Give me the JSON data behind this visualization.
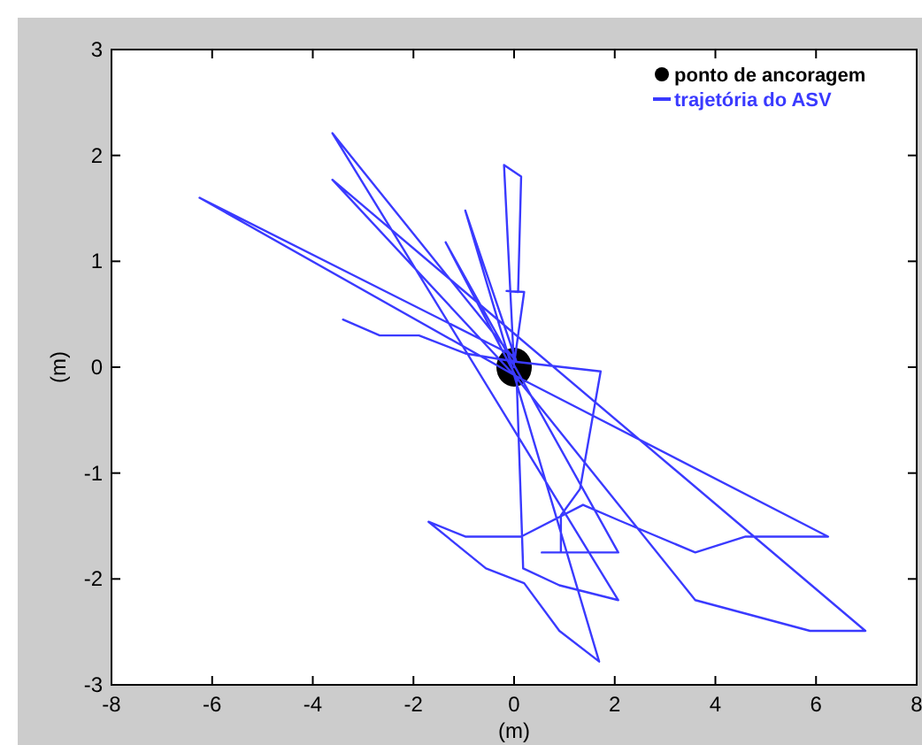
{
  "chart_data": {
    "type": "line",
    "xlabel": "(m)",
    "ylabel": "(m)",
    "xlim": [
      -8,
      8
    ],
    "ylim": [
      -3,
      3
    ],
    "xticks": [
      -8,
      -6,
      -4,
      -2,
      0,
      2,
      4,
      6,
      8
    ],
    "yticks": [
      -3,
      -2,
      -1,
      0,
      1,
      2,
      3
    ],
    "legend": "top right",
    "series": [
      {
        "name": "ponto de ancoragem",
        "type": "scatter",
        "marker": "circle",
        "color": "#000000",
        "x": [
          0
        ],
        "values": [
          0
        ]
      },
      {
        "name": "trajetória do ASV",
        "color": "#3a3aff",
        "x": [
          0,
          -0.2,
          0.14,
          0.08,
          -0.15,
          0.2,
          0.02,
          -6.25,
          0.1,
          6.24,
          4.6,
          3.6,
          2.1,
          1.37,
          0.14,
          -0.97,
          -1.7,
          -0.56,
          0.2,
          0.9,
          1.69,
          -0.97,
          0.05,
          -3.61,
          2.07,
          0.9,
          0.18,
          0.05,
          -3.61,
          6.98,
          5.88,
          3.6,
          0.05,
          -1.36,
          2.07,
          0.55,
          0.93,
          0.93,
          1.31,
          1.72,
          0.05,
          -0.97,
          -1.89,
          -2.67,
          -3.4
        ],
        "values": [
          0,
          1.91,
          1.8,
          0.71,
          0.72,
          0.71,
          0.1,
          1.6,
          -0.1,
          -1.6,
          -1.6,
          -1.75,
          -1.45,
          -1.3,
          -1.6,
          -1.6,
          -1.46,
          -1.9,
          -2.04,
          -2.49,
          -2.78,
          1.48,
          0.05,
          2.21,
          -2.2,
          -2.06,
          -1.9,
          -0.1,
          1.77,
          -2.49,
          -2.49,
          -2.2,
          -0.1,
          1.18,
          -1.75,
          -1.75,
          -1.75,
          -1.4,
          -1.15,
          -0.04,
          0.05,
          0.13,
          0.3,
          0.3,
          0.45
        ]
      }
    ]
  }
}
